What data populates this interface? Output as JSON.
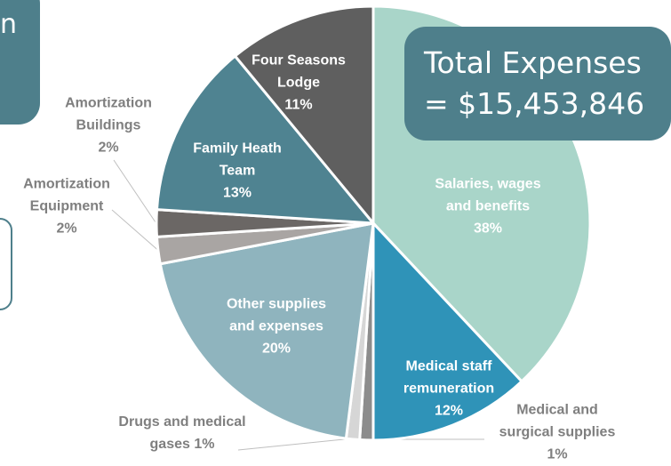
{
  "chart_data": {
    "type": "pie",
    "categories": [
      "Salaries, wages and benefits",
      "Medical staff remuneration",
      "Medical and surgical supplies",
      "Drugs and medical gases",
      "Other supplies and expenses",
      "Amortization Equipment",
      "Amortization Buildings",
      "Family Heath Team",
      "Four Seasons Lodge"
    ],
    "values": [
      38,
      12,
      1,
      1,
      20,
      2,
      2,
      13,
      11
    ],
    "value_labels": [
      "38%",
      "12%",
      "1%",
      "1%",
      "20%",
      "2%",
      "2%",
      "13%",
      "11%"
    ],
    "colors": [
      "#a9d5c9",
      "#2f93b8",
      "#8c8c8c",
      "#d6d6d6",
      "#8fb4be",
      "#a9a5a3",
      "#6b6765",
      "#4f8391",
      "#5f5f5f"
    ],
    "annotations": [
      "Total Expenses",
      "= $15,453,846"
    ],
    "overlay_text": "n"
  }
}
